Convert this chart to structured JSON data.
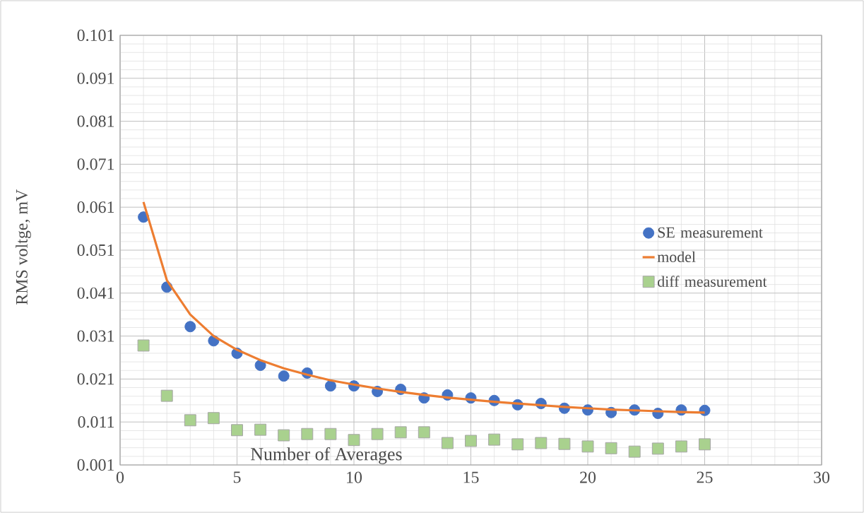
{
  "chart_data": {
    "type": "scatter",
    "xlabel": "Number  of Averages",
    "ylabel": "RMS voltge, mV",
    "xlim": [
      0,
      30
    ],
    "xticks": [
      0,
      5,
      10,
      15,
      20,
      25,
      30
    ],
    "ylim": [
      0.001,
      0.101
    ],
    "yticks": [
      0.001,
      0.011,
      0.021,
      0.031,
      0.041,
      0.051,
      0.061,
      0.071,
      0.081,
      0.091,
      0.101
    ],
    "grid": true,
    "legend": "right",
    "x": [
      1,
      2,
      3,
      4,
      5,
      6,
      7,
      8,
      9,
      10,
      11,
      12,
      13,
      14,
      15,
      16,
      17,
      18,
      19,
      20,
      21,
      22,
      23,
      24,
      25
    ],
    "series": [
      {
        "name": "SE measurement",
        "type": "scatter",
        "marker": "circle",
        "color": "#4472c4",
        "values": [
          0.0587,
          0.0424,
          0.0332,
          0.0299,
          0.027,
          0.0242,
          0.0217,
          0.0224,
          0.0194,
          0.0194,
          0.0181,
          0.0186,
          0.0166,
          0.0173,
          0.0166,
          0.016,
          0.015,
          0.0153,
          0.0142,
          0.0138,
          0.0132,
          0.0138,
          0.013,
          0.0138,
          0.0137
        ]
      },
      {
        "name": "model",
        "type": "line",
        "marker": "none",
        "color": "#ed7d31",
        "values": [
          0.0622,
          0.044,
          0.036,
          0.031,
          0.0278,
          0.0254,
          0.0235,
          0.022,
          0.0207,
          0.0197,
          0.0188,
          0.018,
          0.0173,
          0.0167,
          0.0162,
          0.0157,
          0.0153,
          0.0149,
          0.0145,
          0.0142,
          0.0139,
          0.0137,
          0.0135,
          0.0133,
          0.0132
        ]
      },
      {
        "name": "diff measurement",
        "type": "scatter",
        "marker": "square",
        "color": "#a9d18e",
        "values": [
          0.0288,
          0.0171,
          0.0114,
          0.0119,
          0.0091,
          0.0092,
          0.0079,
          0.0082,
          0.0082,
          0.0068,
          0.0082,
          0.0086,
          0.0086,
          0.0061,
          0.0066,
          0.0069,
          0.0058,
          0.0061,
          0.0059,
          0.0053,
          0.0049,
          0.0041,
          0.0048,
          0.0053,
          0.0058
        ]
      }
    ]
  }
}
